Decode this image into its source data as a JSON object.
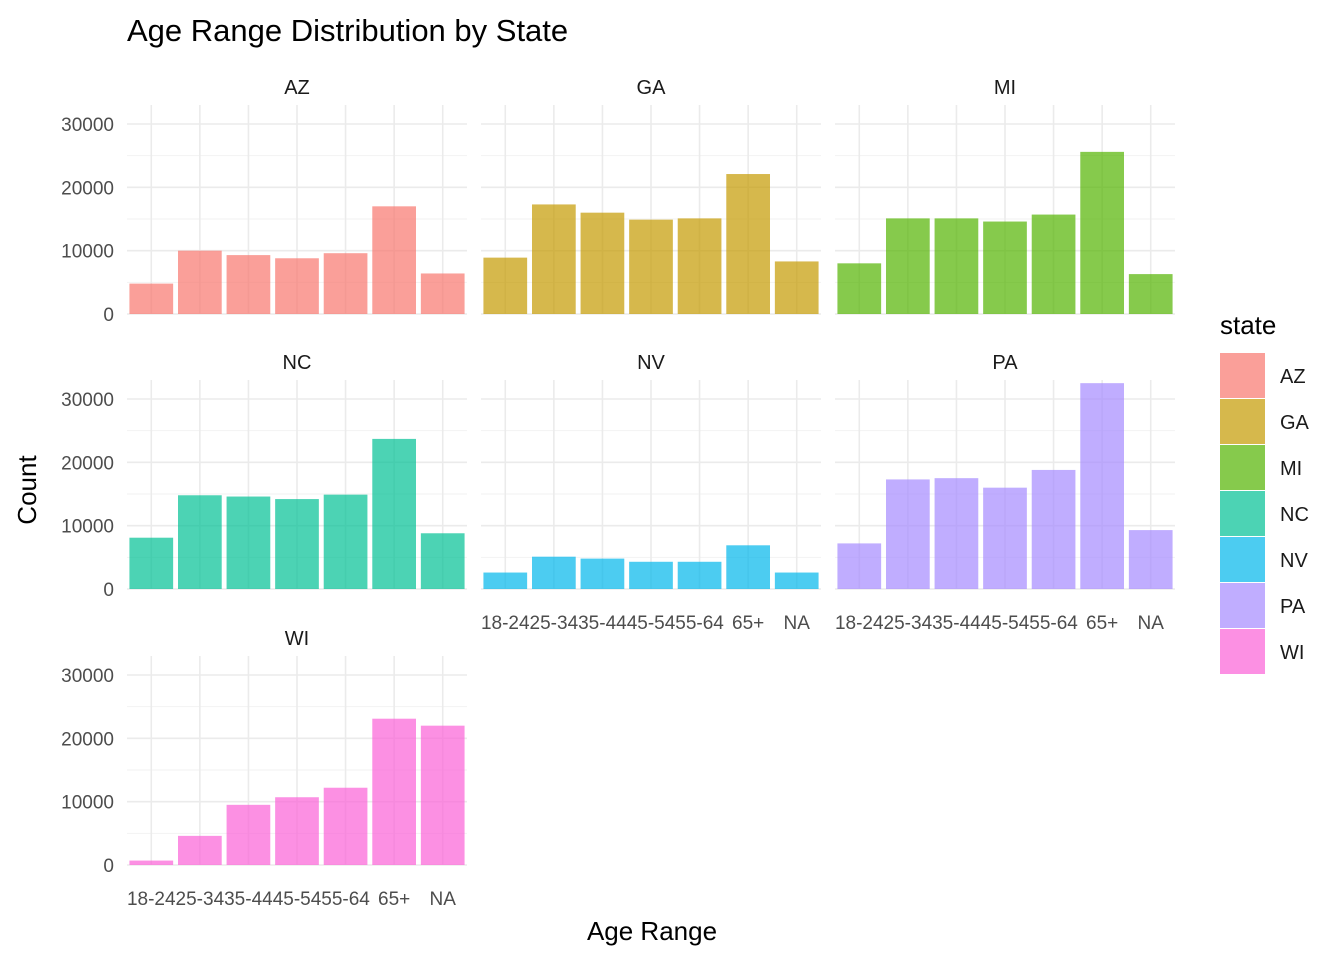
{
  "chart_data": {
    "type": "bar",
    "title": "Age Range Distribution by State",
    "xlabel": "Age Range",
    "ylabel": "Count",
    "ylim": [
      0,
      33000
    ],
    "yticks": [
      0,
      10000,
      20000,
      30000
    ],
    "categories": [
      "18-24",
      "25-34",
      "35-44",
      "45-54",
      "55-64",
      "65+",
      "NA"
    ],
    "legend_title": "state",
    "legend_position": "right",
    "grid": true,
    "series": [
      {
        "name": "AZ",
        "color": "#F8766D",
        "values": [
          4800,
          10000,
          9300,
          8800,
          9600,
          17000,
          6400
        ]
      },
      {
        "name": "GA",
        "color": "#C49A00",
        "values": [
          8900,
          17300,
          16000,
          14900,
          15100,
          22100,
          8300
        ]
      },
      {
        "name": "MI",
        "color": "#53B400",
        "values": [
          8000,
          15100,
          15100,
          14600,
          15700,
          25600,
          6300
        ]
      },
      {
        "name": "NC",
        "color": "#00C094",
        "values": [
          8100,
          14800,
          14600,
          14200,
          14900,
          23700,
          8800
        ]
      },
      {
        "name": "NV",
        "color": "#00B6EB",
        "values": [
          2600,
          5100,
          4800,
          4300,
          4300,
          6900,
          2600
        ]
      },
      {
        "name": "PA",
        "color": "#A58AFF",
        "values": [
          7200,
          17300,
          17500,
          16000,
          18800,
          32500,
          9300
        ]
      },
      {
        "name": "WI",
        "color": "#FB61D7",
        "values": [
          700,
          4600,
          9500,
          10700,
          12200,
          23100,
          22000
        ]
      }
    ]
  }
}
